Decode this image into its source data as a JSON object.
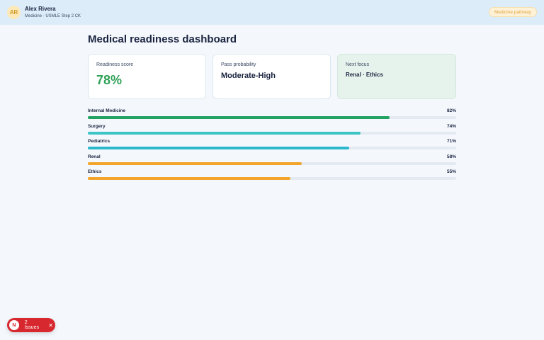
{
  "header": {
    "avatar_initials": "AR",
    "user_name": "Alex Rivera",
    "user_subtitle": "Medicine · USMLE Step 2 CK",
    "pathway_label": "Medicine pathway"
  },
  "page": {
    "title": "Medical readiness dashboard"
  },
  "cards": {
    "readiness": {
      "label": "Readiness score",
      "value": "78%"
    },
    "pass": {
      "label": "Pass probability",
      "value": "Moderate-High"
    },
    "focus": {
      "label": "Next focus",
      "value": "Renal · Ethics"
    }
  },
  "subjects": [
    {
      "name": "Internal Medicine",
      "percent_label": "82%",
      "value": 82,
      "color": "#22a362"
    },
    {
      "name": "Surgery",
      "percent_label": "74%",
      "value": 74,
      "color": "#3cc4c6"
    },
    {
      "name": "Pediatrics",
      "percent_label": "71%",
      "value": 71,
      "color": "#2bb8cc"
    },
    {
      "name": "Renal",
      "percent_label": "58%",
      "value": 58,
      "color": "#f2a52a"
    },
    {
      "name": "Ethics",
      "percent_label": "55%",
      "value": 55,
      "color": "#f2a52a"
    }
  ],
  "issues": {
    "badge": "N",
    "label": "2 Issues",
    "close_icon": "close-icon"
  }
}
